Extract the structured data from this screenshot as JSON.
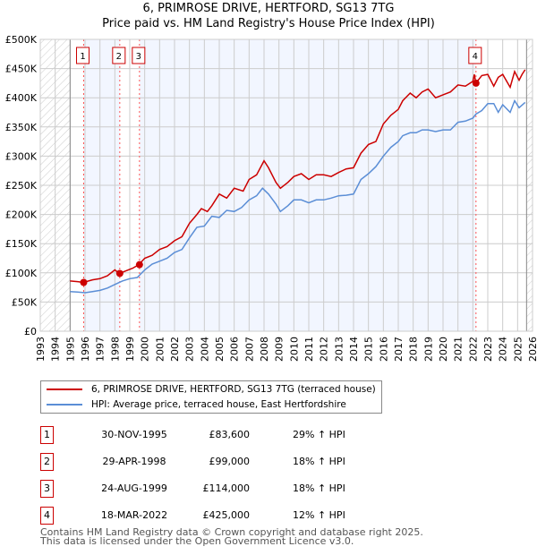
{
  "header": {
    "title": "6, PRIMROSE DRIVE, HERTFORD, SG13 7TG",
    "subtitle": "Price paid vs. HM Land Registry's House Price Index (HPI)"
  },
  "chart_data": {
    "type": "line",
    "title": "6, PRIMROSE DRIVE, HERTFORD, SG13 7TG",
    "subtitle": "Price paid vs. HM Land Registry's House Price Index (HPI)",
    "xlim": [
      1993,
      2026
    ],
    "ylim": [
      0,
      500000
    ],
    "x_ticks": [
      "1993",
      "1994",
      "1995",
      "1996",
      "1997",
      "1998",
      "1999",
      "2000",
      "2001",
      "2002",
      "2003",
      "2004",
      "2005",
      "2006",
      "2007",
      "2008",
      "2009",
      "2010",
      "2011",
      "2012",
      "2013",
      "2014",
      "2015",
      "2016",
      "2017",
      "2018",
      "2019",
      "2020",
      "2021",
      "2022",
      "2023",
      "2024",
      "2025",
      "2026"
    ],
    "y_ticks": [
      {
        "v": 0,
        "label": "£0"
      },
      {
        "v": 50000,
        "label": "£50K"
      },
      {
        "v": 100000,
        "label": "£100K"
      },
      {
        "v": 150000,
        "label": "£150K"
      },
      {
        "v": 200000,
        "label": "£200K"
      },
      {
        "v": 250000,
        "label": "£250K"
      },
      {
        "v": 300000,
        "label": "£300K"
      },
      {
        "v": 350000,
        "label": "£350K"
      },
      {
        "v": 400000,
        "label": "£400K"
      },
      {
        "v": 450000,
        "label": "£450K"
      },
      {
        "v": 500000,
        "label": "£500K"
      }
    ],
    "grid": true,
    "data_range": [
      1995,
      2025.6
    ],
    "series": [
      {
        "name": "6, PRIMROSE DRIVE, HERTFORD, SG13 7TG (terraced house)",
        "color": "#cc0000",
        "x": [
          1995,
          1995.5,
          1995.9,
          1996.5,
          1997,
          1997.5,
          1998,
          1998.3,
          1998.8,
          1999.2,
          1999.6,
          2000,
          2000.5,
          2001,
          2001.5,
          2002,
          2002.5,
          2003,
          2003.5,
          2003.8,
          2004.2,
          2004.5,
          2005,
          2005.5,
          2006,
          2006.6,
          2007,
          2007.5,
          2008,
          2008.3,
          2008.8,
          2009.1,
          2009.6,
          2010,
          2010.5,
          2011,
          2011.5,
          2012,
          2012.5,
          2013,
          2013.5,
          2014,
          2014.5,
          2015,
          2015.5,
          2016,
          2016.5,
          2017,
          2017.3,
          2017.8,
          2018.2,
          2018.6,
          2019,
          2019.5,
          2020,
          2020.5,
          2021,
          2021.5,
          2022,
          2022.1,
          2022.2,
          2022.6,
          2023,
          2023.4,
          2023.7,
          2024,
          2024.5,
          2024.8,
          2025.1,
          2025.3,
          2025.5
        ],
        "y": [
          86000,
          85000,
          83600,
          88000,
          90000,
          95000,
          105000,
          99000,
          104000,
          108000,
          114000,
          125000,
          130000,
          140000,
          145000,
          155000,
          162000,
          185000,
          200000,
          210000,
          205000,
          215000,
          235000,
          228000,
          245000,
          240000,
          260000,
          268000,
          292000,
          280000,
          255000,
          245000,
          255000,
          265000,
          270000,
          260000,
          268000,
          268000,
          265000,
          272000,
          278000,
          280000,
          305000,
          320000,
          325000,
          355000,
          370000,
          380000,
          395000,
          408000,
          400000,
          410000,
          415000,
          400000,
          405000,
          410000,
          422000,
          420000,
          428000,
          440000,
          425000,
          438000,
          440000,
          420000,
          435000,
          440000,
          418000,
          445000,
          430000,
          440000,
          448000
        ]
      },
      {
        "name": "HPI: Average price, terraced house, East Hertfordshire",
        "color": "#5b8ed6",
        "x": [
          1995,
          1995.5,
          1996,
          1996.5,
          1997,
          1997.5,
          1998,
          1998.5,
          1999,
          1999.5,
          2000,
          2000.5,
          2001,
          2001.5,
          2002,
          2002.5,
          2003,
          2003.5,
          2004,
          2004.5,
          2005,
          2005.5,
          2006,
          2006.5,
          2007,
          2007.5,
          2007.9,
          2008.3,
          2008.8,
          2009.1,
          2009.6,
          2010,
          2010.5,
          2011,
          2011.5,
          2012,
          2012.5,
          2013,
          2013.5,
          2014,
          2014.5,
          2015,
          2015.5,
          2016,
          2016.5,
          2017,
          2017.3,
          2017.8,
          2018.2,
          2018.6,
          2019,
          2019.5,
          2020,
          2020.5,
          2021,
          2021.5,
          2022,
          2022.2,
          2022.6,
          2023,
          2023.4,
          2023.7,
          2024,
          2024.5,
          2024.8,
          2025.1,
          2025.5
        ],
        "y": [
          68000,
          67000,
          66000,
          68000,
          70000,
          74000,
          80000,
          86000,
          90000,
          92000,
          105000,
          115000,
          120000,
          125000,
          135000,
          140000,
          160000,
          178000,
          180000,
          197000,
          195000,
          207000,
          205000,
          212000,
          225000,
          232000,
          245000,
          235000,
          218000,
          205000,
          215000,
          225000,
          225000,
          220000,
          225000,
          225000,
          228000,
          232000,
          233000,
          235000,
          260000,
          270000,
          282000,
          300000,
          315000,
          325000,
          335000,
          340000,
          340000,
          345000,
          345000,
          342000,
          345000,
          345000,
          358000,
          360000,
          365000,
          372000,
          378000,
          390000,
          390000,
          375000,
          388000,
          375000,
          395000,
          383000,
          392000
        ]
      }
    ],
    "sales": [
      {
        "id": "1",
        "x": 1995.91,
        "price": 83600
      },
      {
        "id": "2",
        "x": 1998.33,
        "price": 99000
      },
      {
        "id": "3",
        "x": 1999.65,
        "price": 114000
      },
      {
        "id": "4",
        "x": 2022.21,
        "price": 425000
      }
    ]
  },
  "legend": {
    "items": [
      {
        "label": "6, PRIMROSE DRIVE, HERTFORD, SG13 7TG (terraced house)",
        "color": "#cc0000"
      },
      {
        "label": "HPI: Average price, terraced house, East Hertfordshire",
        "color": "#5b8ed6"
      }
    ]
  },
  "transactions": [
    {
      "num": "1",
      "date": "30-NOV-1995",
      "price": "£83,600",
      "hpi": "29% ↑ HPI"
    },
    {
      "num": "2",
      "date": "29-APR-1998",
      "price": "£99,000",
      "hpi": "18% ↑ HPI"
    },
    {
      "num": "3",
      "date": "24-AUG-1999",
      "price": "£114,000",
      "hpi": "18% ↑ HPI"
    },
    {
      "num": "4",
      "date": "18-MAR-2022",
      "price": "£425,000",
      "hpi": "12% ↑ HPI"
    }
  ],
  "footer": {
    "line1": "Contains HM Land Registry data © Crown copyright and database right 2025.",
    "line2": "This data is licensed under the Open Government Licence v3.0."
  }
}
